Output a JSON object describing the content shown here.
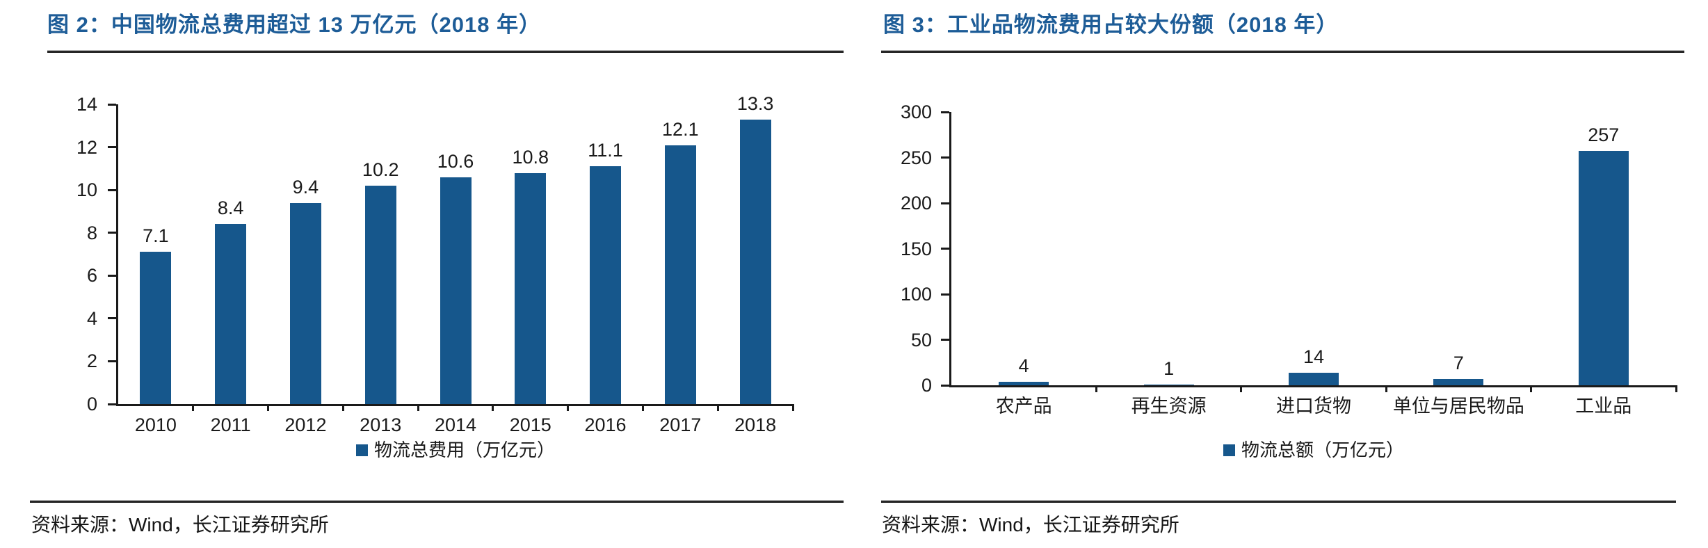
{
  "page": {
    "background": "#ffffff"
  },
  "colors": {
    "bar": "#16578c",
    "title": "#1d5c97",
    "axis": "#1a1a1a",
    "rule": "#262626",
    "text": "#1a1a1a"
  },
  "panels": [
    {
      "figure_label": "图 2：中国物流总费用超过 13 万亿元（2018 年）",
      "source": "资料来源：Wind，长江证券研究所"
    },
    {
      "figure_label": "图 3：工业品物流费用占较大份额（2018 年）",
      "source": "资料来源：Wind，长江证券研究所"
    }
  ],
  "chart_data": [
    {
      "type": "bar",
      "title": "图 2：中国物流总费用超过 13 万亿元（2018 年）",
      "categories": [
        "2010",
        "2011",
        "2012",
        "2013",
        "2014",
        "2015",
        "2016",
        "2017",
        "2018"
      ],
      "values": [
        7.1,
        8.4,
        9.4,
        10.2,
        10.6,
        10.8,
        11.1,
        12.1,
        13.3
      ],
      "data_labels": [
        "7.1",
        "8.4",
        "9.4",
        "10.2",
        "10.6",
        "10.8",
        "11.1",
        "12.1",
        "13.3"
      ],
      "xlabel": "",
      "ylabel": "",
      "ylim": [
        0,
        14
      ],
      "ytick_step": 2,
      "grid": false,
      "legend": [
        "物流总费用（万亿元）"
      ],
      "legend_position": "bottom",
      "bar_color": "#16578c"
    },
    {
      "type": "bar",
      "title": "图 3：工业品物流费用占较大份额（2018 年）",
      "categories": [
        "农产品",
        "再生资源",
        "进口货物",
        "单位与居民物品",
        "工业品"
      ],
      "values": [
        4,
        1,
        14,
        7,
        257
      ],
      "data_labels": [
        "4",
        "1",
        "14",
        "7",
        "257"
      ],
      "xlabel": "",
      "ylabel": "",
      "ylim": [
        0,
        300
      ],
      "ytick_step": 50,
      "grid": false,
      "legend": [
        "物流总额（万亿元）"
      ],
      "legend_position": "bottom",
      "bar_color": "#16578c"
    }
  ]
}
